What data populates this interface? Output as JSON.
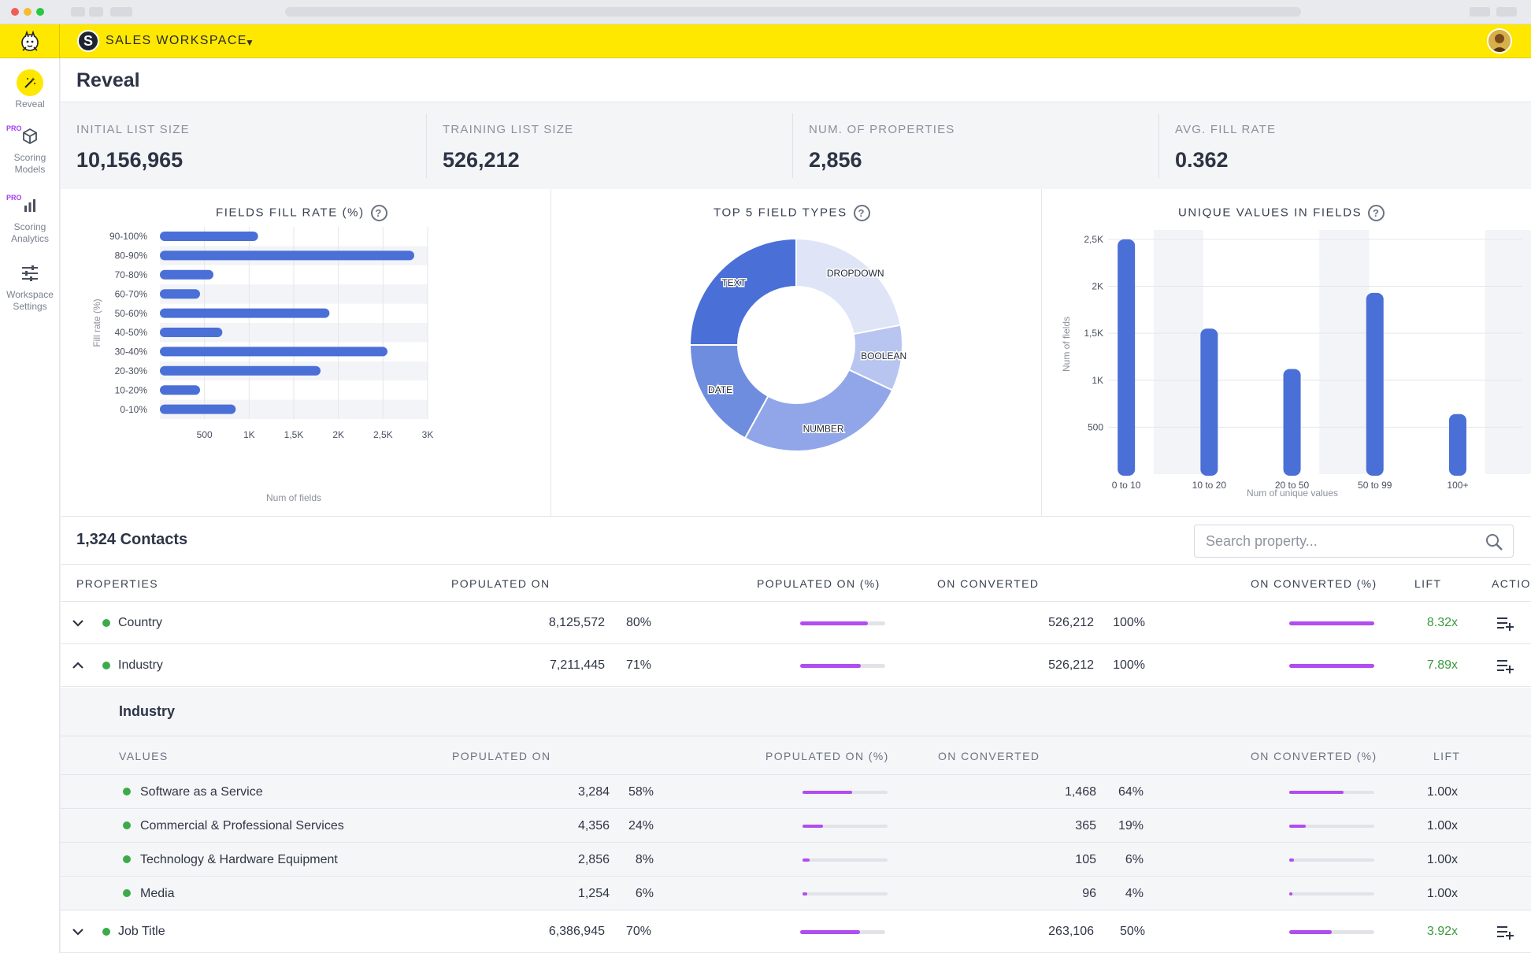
{
  "workspace": {
    "name": "SALES WORKSPACE"
  },
  "sidebar": {
    "items": [
      {
        "label": "Reveal",
        "pro": ""
      },
      {
        "label": "Scoring Models",
        "pro": "PRO"
      },
      {
        "label": "Scoring Analytics",
        "pro": "PRO"
      },
      {
        "label": "Workspace Settings",
        "pro": ""
      }
    ]
  },
  "page": {
    "title": "Reveal"
  },
  "stats": [
    {
      "label": "INITIAL LIST SIZE",
      "value": "10,156,965"
    },
    {
      "label": "TRAINING LIST SIZE",
      "value": "526,212"
    },
    {
      "label": "NUM. OF PROPERTIES",
      "value": "2,856"
    },
    {
      "label": "AVG. FILL RATE",
      "value": "0.362"
    }
  ],
  "chart_titles": {
    "fill_rate": "FIELDS FILL RATE (%)",
    "field_types": "TOP 5 FIELD TYPES",
    "unique_values": "UNIQUE VALUES IN FIELDS"
  },
  "chart_data": [
    {
      "type": "bar",
      "orientation": "horizontal",
      "title": "FIELDS FILL RATE (%)",
      "xlabel": "Num of fields",
      "ylabel": "Fill rate (%)",
      "categories": [
        "90-100%",
        "80-90%",
        "70-80%",
        "60-70%",
        "50-60%",
        "40-50%",
        "30-40%",
        "20-30%",
        "10-20%",
        "0-10%"
      ],
      "values": [
        1100,
        2850,
        600,
        450,
        1900,
        700,
        2550,
        1800,
        450,
        850
      ],
      "xticks": [
        "500",
        "1K",
        "1,5K",
        "2K",
        "2,5K",
        "3K"
      ],
      "xlim": [
        0,
        3000
      ],
      "color": "#4a6fd6"
    },
    {
      "type": "pie",
      "donut": true,
      "title": "TOP 5 FIELD TYPES",
      "labels": [
        "DROPDOWN",
        "BOOLEAN",
        "NUMBER",
        "DATE",
        "TEXT"
      ],
      "values": [
        22,
        10,
        26,
        17,
        25
      ],
      "colors": [
        "#dfe4f7",
        "#b8c5f0",
        "#90a6e8",
        "#6f8ddf",
        "#4a6fd6"
      ]
    },
    {
      "type": "bar",
      "title": "UNIQUE VALUES IN FIELDS",
      "xlabel": "Num of unique values",
      "ylabel": "Num of fields",
      "categories": [
        "0 to 10",
        "10 to 20",
        "20 to 50",
        "50 to  99",
        "100+"
      ],
      "values": [
        2500,
        1550,
        1120,
        1930,
        640
      ],
      "yticks": [
        "500",
        "1K",
        "1,5K",
        "2K",
        "2,5K"
      ],
      "ylim": [
        0,
        2600
      ],
      "color": "#4a6fd6"
    }
  ],
  "contacts": {
    "title": "1,324 Contacts"
  },
  "search": {
    "placeholder": "Search property..."
  },
  "table": {
    "headers": [
      "PROPERTIES",
      "POPULATED ON",
      "POPULATED ON (%)",
      "ON CONVERTED",
      "ON CONVERTED (%)",
      "LIFT",
      "ACTIO"
    ],
    "rows": [
      {
        "name": "Country",
        "populated": "8,125,572",
        "pct": "80%",
        "pct_value": 80,
        "converted": "526,212",
        "conv_pct": "100%",
        "conv_value": 100,
        "lift": "8.32x",
        "expanded": false
      },
      {
        "name": "Industry",
        "populated": "7,211,445",
        "pct": "71%",
        "pct_value": 71,
        "converted": "526,212",
        "conv_pct": "100%",
        "conv_value": 100,
        "lift": "7.89x",
        "expanded": true
      },
      {
        "name": "Job Title",
        "populated": "6,386,945",
        "pct": "70%",
        "pct_value": 70,
        "converted": "263,106",
        "conv_pct": "50%",
        "conv_value": 50,
        "lift": "3.92x",
        "expanded": false
      }
    ],
    "expanded": {
      "title": "Industry",
      "headers": [
        "VALUES",
        "POPULATED ON",
        "POPULATED ON (%)",
        "ON CONVERTED",
        "ON CONVERTED (%)",
        "LIFT"
      ],
      "rows": [
        {
          "name": "Software as a Service",
          "populated": "3,284",
          "pct": "58%",
          "pct_value": 58,
          "converted": "1,468",
          "conv_pct": "64%",
          "conv_value": 64,
          "lift": "1.00x"
        },
        {
          "name": "Commercial & Professional Services",
          "populated": "4,356",
          "pct": "24%",
          "pct_value": 24,
          "converted": "365",
          "conv_pct": "19%",
          "conv_value": 19,
          "lift": "1.00x"
        },
        {
          "name": "Technology & Hardware Equipment",
          "populated": "2,856",
          "pct": "8%",
          "pct_value": 8,
          "converted": "105",
          "conv_pct": "6%",
          "conv_value": 6,
          "lift": "1.00x"
        },
        {
          "name": "Media",
          "populated": "1,254",
          "pct": "6%",
          "pct_value": 6,
          "converted": "96",
          "conv_pct": "4%",
          "conv_value": 4,
          "lift": "1.00x"
        }
      ]
    }
  },
  "colors": {
    "accent": "#ffe800",
    "bar": "#4a6fd6",
    "progress": "#b14df0",
    "positive": "#3a9a3d",
    "dot": "#3daa4a"
  }
}
